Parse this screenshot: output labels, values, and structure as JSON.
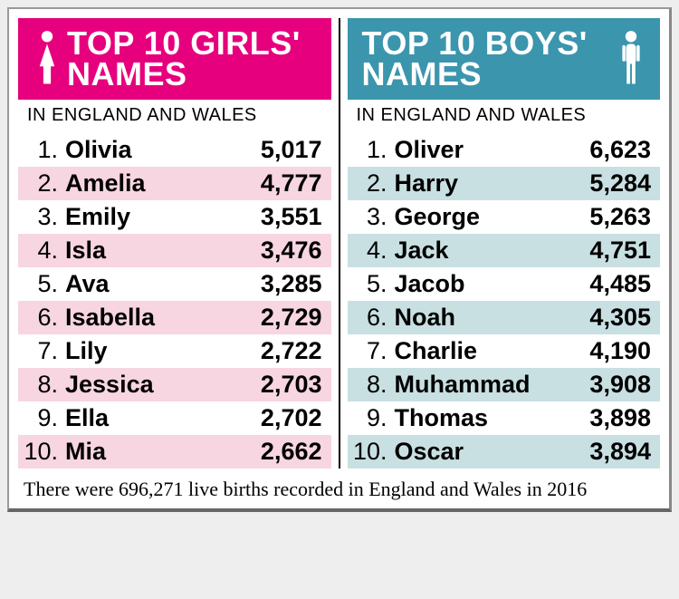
{
  "girls": {
    "title_line1": "TOP 10 GIRLS'",
    "title_line2": "NAMES",
    "header_bg": "#e6007e",
    "stripe_color": "#f7d6e1",
    "icon_color": "#ffffff",
    "subhead": "IN ENGLAND AND WALES",
    "items": [
      {
        "rank": "1.",
        "name": "Olivia",
        "value": "5,017"
      },
      {
        "rank": "2.",
        "name": "Amelia",
        "value": "4,777"
      },
      {
        "rank": "3.",
        "name": "Emily",
        "value": "3,551"
      },
      {
        "rank": "4.",
        "name": "Isla",
        "value": "3,476"
      },
      {
        "rank": "5.",
        "name": "Ava",
        "value": "3,285"
      },
      {
        "rank": "6.",
        "name": "Isabella",
        "value": "2,729"
      },
      {
        "rank": "7.",
        "name": "Lily",
        "value": "2,722"
      },
      {
        "rank": "8.",
        "name": "Jessica",
        "value": "2,703"
      },
      {
        "rank": "9.",
        "name": "Ella",
        "value": "2,702"
      },
      {
        "rank": "10.",
        "name": "Mia",
        "value": "2,662"
      }
    ]
  },
  "boys": {
    "title_line1": "TOP 10 BOYS'",
    "title_line2": "NAMES",
    "header_bg": "#3b95ad",
    "stripe_color": "#c9e0e2",
    "icon_color": "#ffffff",
    "subhead": "IN ENGLAND AND WALES",
    "items": [
      {
        "rank": "1.",
        "name": "Oliver",
        "value": "6,623"
      },
      {
        "rank": "2.",
        "name": "Harry",
        "value": "5,284"
      },
      {
        "rank": "3.",
        "name": "George",
        "value": "5,263"
      },
      {
        "rank": "4.",
        "name": "Jack",
        "value": "4,751"
      },
      {
        "rank": "5.",
        "name": "Jacob",
        "value": "4,485"
      },
      {
        "rank": "6.",
        "name": "Noah",
        "value": "4,305"
      },
      {
        "rank": "7.",
        "name": "Charlie",
        "value": "4,190"
      },
      {
        "rank": "8.",
        "name": "Muhammad",
        "value": "3,908"
      },
      {
        "rank": "9.",
        "name": "Thomas",
        "value": "3,898"
      },
      {
        "rank": "10.",
        "name": "Oscar",
        "value": "3,894"
      }
    ]
  },
  "footer": "There were 696,271 live births recorded in England and Wales in 2016"
}
